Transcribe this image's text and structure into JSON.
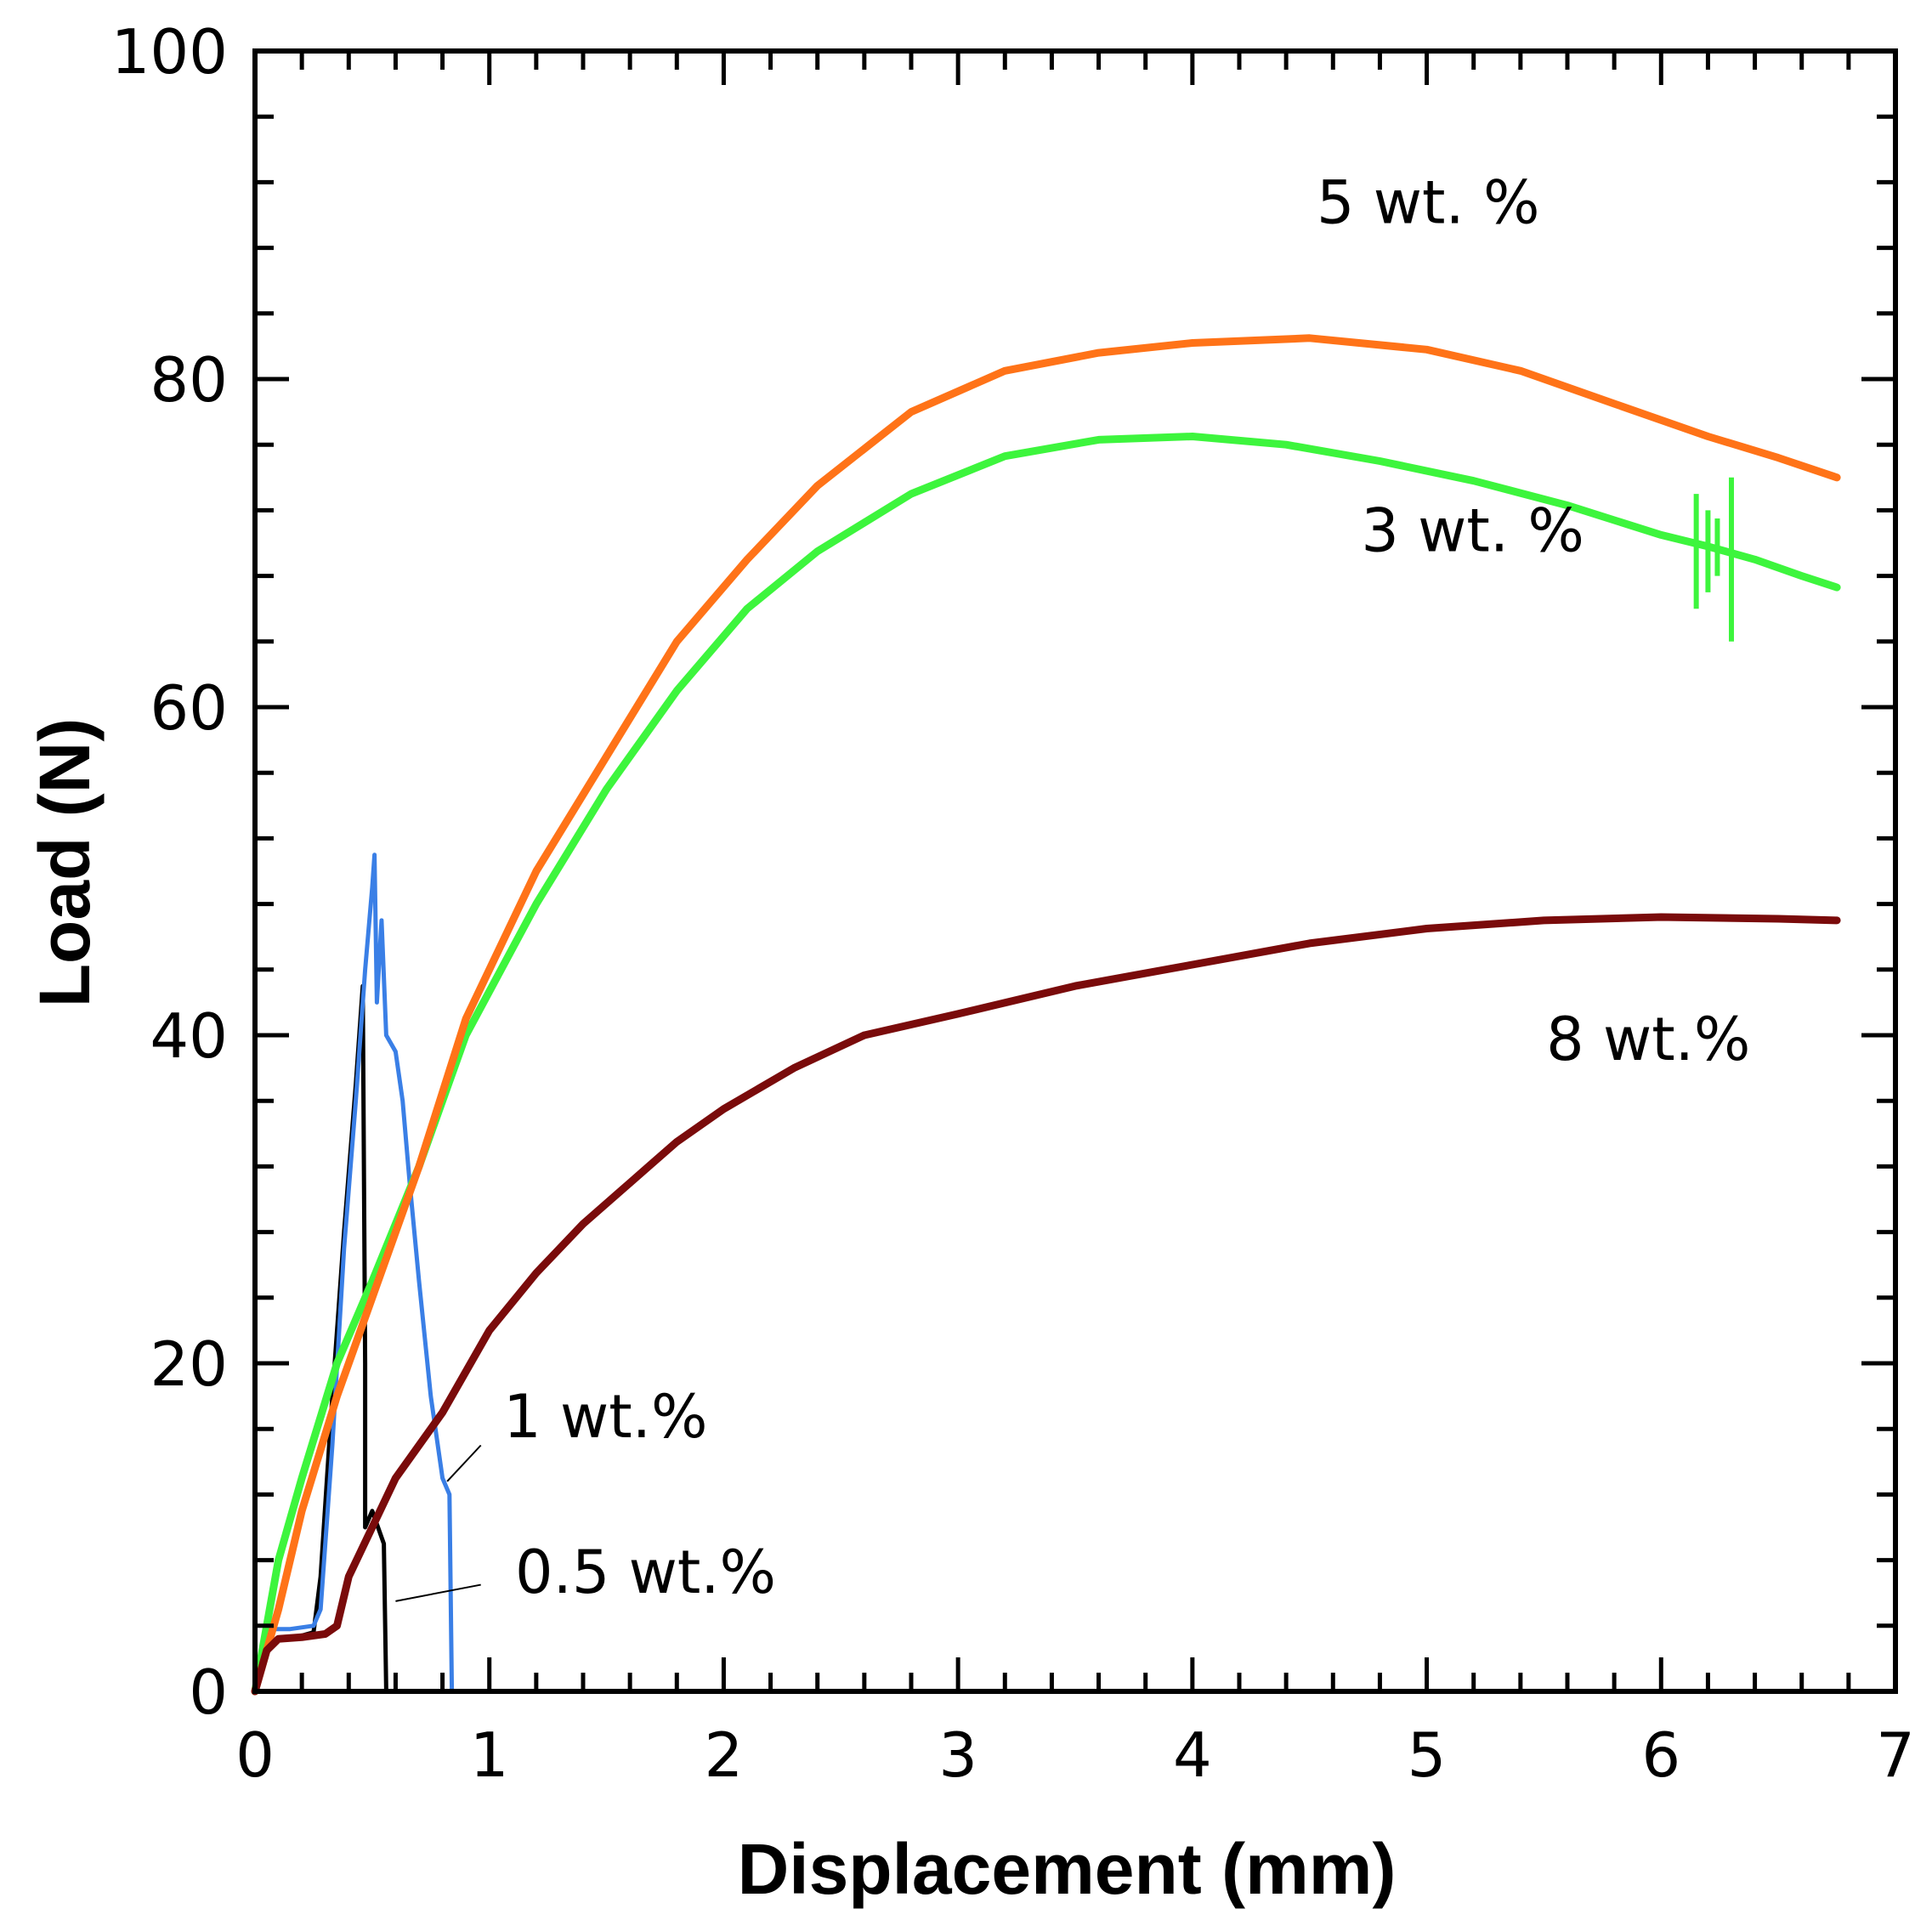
{
  "chart_data": {
    "type": "line",
    "title": "",
    "xlabel": "Displacement (mm)",
    "ylabel": "Load (N)",
    "xlim": [
      0,
      7
    ],
    "ylim": [
      0,
      100
    ],
    "xticks": [
      0,
      1,
      2,
      3,
      4,
      5,
      6,
      7
    ],
    "yticks": [
      0,
      20,
      40,
      60,
      80,
      100
    ],
    "x_tick_labels": [
      "0",
      "1",
      "2",
      "3",
      "4",
      "5",
      "6",
      "7"
    ],
    "y_tick_labels": [
      "0",
      "20",
      "40",
      "60",
      "80",
      "100"
    ],
    "grid": false,
    "legend": "none (inline labels)",
    "series": [
      {
        "name": "0.5 wt.%",
        "label": "0.5 wt.%",
        "color": "#000000",
        "points": [
          [
            0,
            0
          ],
          [
            0.03,
            2
          ],
          [
            0.06,
            3
          ],
          [
            0.12,
            3.2
          ],
          [
            0.2,
            3.4
          ],
          [
            0.25,
            3.6
          ],
          [
            0.28,
            7
          ],
          [
            0.33,
            18
          ],
          [
            0.38,
            28
          ],
          [
            0.43,
            37
          ],
          [
            0.46,
            43
          ],
          [
            0.47,
            20
          ],
          [
            0.47,
            10
          ],
          [
            0.5,
            11
          ],
          [
            0.55,
            9
          ],
          [
            0.56,
            0
          ],
          [
            0.7,
            0
          ],
          [
            6.75,
            0
          ]
        ]
      },
      {
        "name": "1 wt.%",
        "label": "1 wt.%",
        "color": "#3a7fe6",
        "points": [
          [
            0,
            0
          ],
          [
            0.04,
            2
          ],
          [
            0.08,
            3.8
          ],
          [
            0.15,
            3.8
          ],
          [
            0.25,
            4
          ],
          [
            0.28,
            5
          ],
          [
            0.33,
            15
          ],
          [
            0.38,
            27
          ],
          [
            0.43,
            36
          ],
          [
            0.47,
            44
          ],
          [
            0.5,
            49
          ],
          [
            0.51,
            51
          ],
          [
            0.52,
            42
          ],
          [
            0.54,
            47
          ],
          [
            0.56,
            40
          ],
          [
            0.6,
            39
          ],
          [
            0.63,
            36
          ],
          [
            0.66,
            31
          ],
          [
            0.7,
            25
          ],
          [
            0.75,
            18
          ],
          [
            0.8,
            13
          ],
          [
            0.83,
            12
          ],
          [
            0.84,
            0
          ],
          [
            6.75,
            0
          ]
        ]
      },
      {
        "name": "3 wt. %",
        "label": "3 wt. %",
        "color": "#3df53d",
        "points": [
          [
            0,
            0
          ],
          [
            0.1,
            8
          ],
          [
            0.2,
            13
          ],
          [
            0.35,
            20
          ],
          [
            0.5,
            25
          ],
          [
            0.7,
            32
          ],
          [
            0.9,
            40
          ],
          [
            1.2,
            48
          ],
          [
            1.5,
            55
          ],
          [
            1.8,
            61
          ],
          [
            2.1,
            66
          ],
          [
            2.4,
            69.5
          ],
          [
            2.8,
            73
          ],
          [
            3.2,
            75.3
          ],
          [
            3.6,
            76.3
          ],
          [
            4.0,
            76.5
          ],
          [
            4.4,
            76
          ],
          [
            4.8,
            75
          ],
          [
            5.2,
            73.8
          ],
          [
            5.6,
            72.3
          ],
          [
            6.0,
            70.5
          ],
          [
            6.2,
            69.8
          ],
          [
            6.4,
            69
          ],
          [
            6.6,
            68
          ],
          [
            6.75,
            67.3
          ]
        ]
      },
      {
        "name": "5 wt. %",
        "label": "5 wt. %",
        "color": "#ff7318",
        "points": [
          [
            0,
            0
          ],
          [
            0.1,
            5
          ],
          [
            0.2,
            11
          ],
          [
            0.35,
            18
          ],
          [
            0.5,
            24
          ],
          [
            0.7,
            32
          ],
          [
            0.9,
            41
          ],
          [
            1.2,
            50
          ],
          [
            1.5,
            57
          ],
          [
            1.8,
            64
          ],
          [
            2.1,
            69
          ],
          [
            2.4,
            73.5
          ],
          [
            2.8,
            78
          ],
          [
            3.2,
            80.5
          ],
          [
            3.6,
            81.6
          ],
          [
            4.0,
            82.2
          ],
          [
            4.5,
            82.5
          ],
          [
            5.0,
            81.8
          ],
          [
            5.4,
            80.5
          ],
          [
            5.8,
            78.5
          ],
          [
            6.2,
            76.5
          ],
          [
            6.5,
            75.2
          ],
          [
            6.75,
            74
          ]
        ]
      },
      {
        "name": "8 wt.%",
        "label": "8 wt.%",
        "color": "#7a0b0b",
        "points": [
          [
            0,
            0
          ],
          [
            0.05,
            2.5
          ],
          [
            0.1,
            3.2
          ],
          [
            0.2,
            3.3
          ],
          [
            0.3,
            3.5
          ],
          [
            0.35,
            4
          ],
          [
            0.4,
            7
          ],
          [
            0.5,
            10
          ],
          [
            0.6,
            13
          ],
          [
            0.8,
            17
          ],
          [
            1.0,
            22
          ],
          [
            1.2,
            25.5
          ],
          [
            1.4,
            28.5
          ],
          [
            1.6,
            31
          ],
          [
            1.8,
            33.5
          ],
          [
            2.0,
            35.5
          ],
          [
            2.3,
            38
          ],
          [
            2.6,
            40
          ],
          [
            3.0,
            41.3
          ],
          [
            3.5,
            43
          ],
          [
            4.0,
            44.3
          ],
          [
            4.5,
            45.6
          ],
          [
            5.0,
            46.5
          ],
          [
            5.5,
            47
          ],
          [
            6.0,
            47.2
          ],
          [
            6.5,
            47.1
          ],
          [
            6.75,
            47
          ]
        ]
      }
    ],
    "annotations": [
      {
        "text": "5 wt. %",
        "x": 4.53,
        "y": 89.5
      },
      {
        "text": "3 wt. %",
        "x": 4.72,
        "y": 69.5
      },
      {
        "text": "8 wt.%",
        "x": 5.51,
        "y": 38.5
      },
      {
        "text": "1 wt.%",
        "x": 1.06,
        "y": 15.5
      },
      {
        "text": "0.5 wt.%",
        "x": 1.11,
        "y": 6.0
      }
    ],
    "leader_lines": [
      {
        "from": [
          1.0,
          15
        ],
        "to": [
          0.82,
          12.8
        ]
      },
      {
        "from": [
          1.0,
          6.5
        ],
        "to": [
          0.6,
          5.5
        ]
      }
    ]
  }
}
